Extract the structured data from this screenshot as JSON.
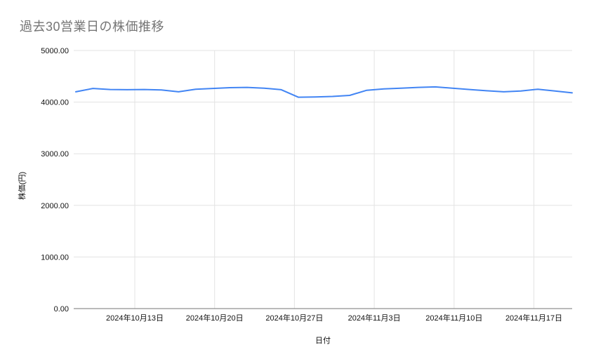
{
  "chart_data": {
    "type": "line",
    "title": "過去30営業日の株価推移",
    "xlabel": "日付",
    "ylabel": "株価(円)",
    "ylim": [
      0,
      5000
    ],
    "grid": true,
    "legend_position": "none",
    "y_ticks": [
      "0.00",
      "1000.00",
      "2000.00",
      "3000.00",
      "4000.00",
      "5000.00"
    ],
    "x_ticks": [
      "2024年10月13日",
      "2024年10月20日",
      "2024年10月27日",
      "2024年11月3日",
      "2024年11月10日",
      "2024年11月17日"
    ],
    "values": [
      4200,
      4265,
      4245,
      4240,
      4245,
      4235,
      4200,
      4250,
      4265,
      4280,
      4285,
      4270,
      4240,
      4095,
      4100,
      4110,
      4130,
      4230,
      4255,
      4270,
      4285,
      4295,
      4270,
      4245,
      4220,
      4200,
      4215,
      4250,
      4215,
      4180
    ]
  },
  "colors": {
    "background": "#ffffff",
    "title_text": "#757575",
    "grid": "#e3e3e3",
    "axis": "#757575",
    "tick_text": "#111111",
    "line": "#4285f4"
  }
}
